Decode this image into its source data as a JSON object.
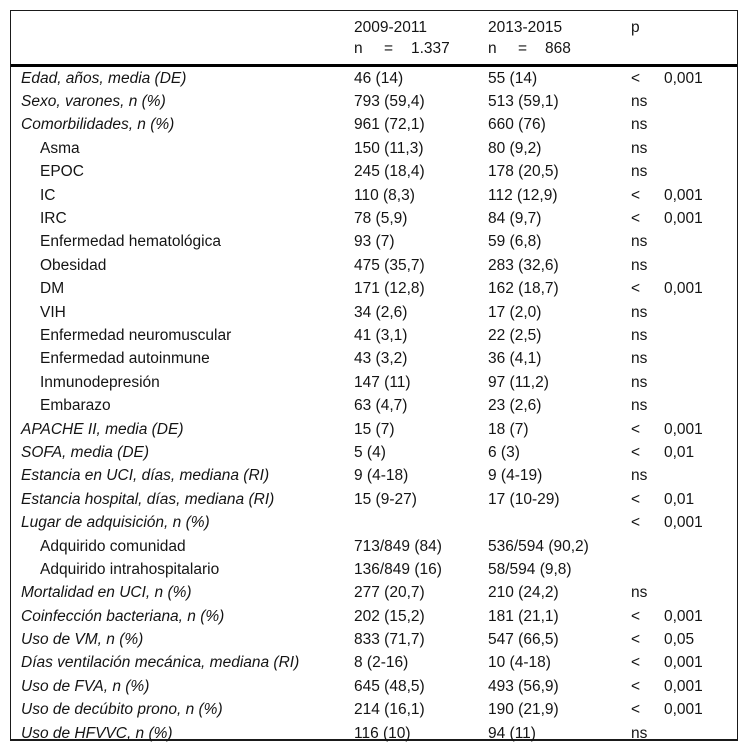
{
  "colors": {
    "background": "#ffffff",
    "text": "#141414",
    "rule": "#000000"
  },
  "table": {
    "header": {
      "period1": {
        "title": "2009-2011",
        "n_label": "n",
        "eq": "=",
        "n_value": "1.337"
      },
      "period2": {
        "title": "2013-2015",
        "n_label": "n",
        "eq": "=",
        "n_value": "868"
      },
      "p_label": "p"
    },
    "rows": [
      {
        "label": "Edad, años, media (DE)",
        "indent": false,
        "v1": "46 (14)",
        "v2": "55 (14)",
        "p_sign": "<",
        "p_value": "0,001"
      },
      {
        "label": "Sexo, varones, n (%)",
        "indent": false,
        "v1": "793 (59,4)",
        "v2": "513 (59,1)",
        "p_sign": "ns",
        "p_value": ""
      },
      {
        "label": "Comorbilidades, n (%)",
        "indent": false,
        "v1": "961 (72,1)",
        "v2": "660 (76)",
        "p_sign": "ns",
        "p_value": ""
      },
      {
        "label": "Asma",
        "indent": true,
        "v1": "150 (11,3)",
        "v2": "80 (9,2)",
        "p_sign": "ns",
        "p_value": ""
      },
      {
        "label": "EPOC",
        "indent": true,
        "v1": "245 (18,4)",
        "v2": "178 (20,5)",
        "p_sign": "ns",
        "p_value": ""
      },
      {
        "label": "IC",
        "indent": true,
        "v1": "110 (8,3)",
        "v2": "112 (12,9)",
        "p_sign": "<",
        "p_value": "0,001"
      },
      {
        "label": "IRC",
        "indent": true,
        "v1": "78 (5,9)",
        "v2": "84 (9,7)",
        "p_sign": "<",
        "p_value": "0,001"
      },
      {
        "label": "Enfermedad hematológica",
        "indent": true,
        "v1": "93 (7)",
        "v2": "59 (6,8)",
        "p_sign": "ns",
        "p_value": ""
      },
      {
        "label": "Obesidad",
        "indent": true,
        "v1": "475 (35,7)",
        "v2": "283 (32,6)",
        "p_sign": "ns",
        "p_value": ""
      },
      {
        "label": "DM",
        "indent": true,
        "v1": "171 (12,8)",
        "v2": "162 (18,7)",
        "p_sign": "<",
        "p_value": "0,001"
      },
      {
        "label": "VIH",
        "indent": true,
        "v1": "34 (2,6)",
        "v2": "17 (2,0)",
        "p_sign": "ns",
        "p_value": ""
      },
      {
        "label": "Enfermedad neuromuscular",
        "indent": true,
        "v1": "41 (3,1)",
        "v2": "22 (2,5)",
        "p_sign": "ns",
        "p_value": ""
      },
      {
        "label": "Enfermedad autoinmune",
        "indent": true,
        "v1": "43 (3,2)",
        "v2": "36 (4,1)",
        "p_sign": "ns",
        "p_value": ""
      },
      {
        "label": "Inmunodepresión",
        "indent": true,
        "v1": "147 (11)",
        "v2": "97 (11,2)",
        "p_sign": "ns",
        "p_value": ""
      },
      {
        "label": "Embarazo",
        "indent": true,
        "v1": "63 (4,7)",
        "v2": "23 (2,6)",
        "p_sign": "ns",
        "p_value": ""
      },
      {
        "label": "APACHE II, media (DE)",
        "indent": false,
        "v1": "15 (7)",
        "v2": "18 (7)",
        "p_sign": "<",
        "p_value": "0,001"
      },
      {
        "label": "SOFA, media (DE)",
        "indent": false,
        "v1": "5 (4)",
        "v2": "6 (3)",
        "p_sign": "<",
        "p_value": "0,01"
      },
      {
        "label": "Estancia en UCI, días, mediana (RI)",
        "indent": false,
        "v1": "9 (4-18)",
        "v2": "9 (4-19)",
        "p_sign": "ns",
        "p_value": ""
      },
      {
        "label": "Estancia hospital, días, mediana (RI)",
        "indent": false,
        "v1": "15 (9-27)",
        "v2": "17 (10-29)",
        "p_sign": "<",
        "p_value": "0,01"
      },
      {
        "label": "Lugar de adquisición, n (%)",
        "indent": false,
        "v1": "",
        "v2": "",
        "p_sign": "<",
        "p_value": "0,001"
      },
      {
        "label": "Adquirido comunidad",
        "indent": true,
        "v1": "713/849 (84)",
        "v2": "536/594 (90,2)",
        "p_sign": "",
        "p_value": ""
      },
      {
        "label": "Adquirido intrahospitalario",
        "indent": true,
        "v1": "136/849 (16)",
        "v2": "58/594 (9,8)",
        "p_sign": "",
        "p_value": ""
      },
      {
        "label": "Mortalidad en UCI, n (%)",
        "indent": false,
        "v1": "277 (20,7)",
        "v2": "210 (24,2)",
        "p_sign": "ns",
        "p_value": ""
      },
      {
        "label": "Coinfección bacteriana, n (%)",
        "indent": false,
        "v1": "202 (15,2)",
        "v2": "181 (21,1)",
        "p_sign": "<",
        "p_value": "0,001"
      },
      {
        "label": "Uso de VM, n (%)",
        "indent": false,
        "v1": "833 (71,7)",
        "v2": "547 (66,5)",
        "p_sign": "<",
        "p_value": "0,05"
      },
      {
        "label": "Días ventilación mecánica, mediana (RI)",
        "indent": false,
        "v1": "8 (2-16)",
        "v2": "10 (4-18)",
        "p_sign": "<",
        "p_value": "0,001"
      },
      {
        "label": "Uso de FVA, n (%)",
        "indent": false,
        "v1": "645 (48,5)",
        "v2": "493 (56,9)",
        "p_sign": "<",
        "p_value": "0,001"
      },
      {
        "label": "Uso de decúbito prono, n (%)",
        "indent": false,
        "v1": "214 (16,1)",
        "v2": "190 (21,9)",
        "p_sign": "<",
        "p_value": "0,001"
      },
      {
        "label": "Uso de HFVVC, n (%)",
        "indent": false,
        "v1": "116 (10)",
        "v2": "94 (11)",
        "p_sign": "ns",
        "p_value": ""
      }
    ]
  }
}
